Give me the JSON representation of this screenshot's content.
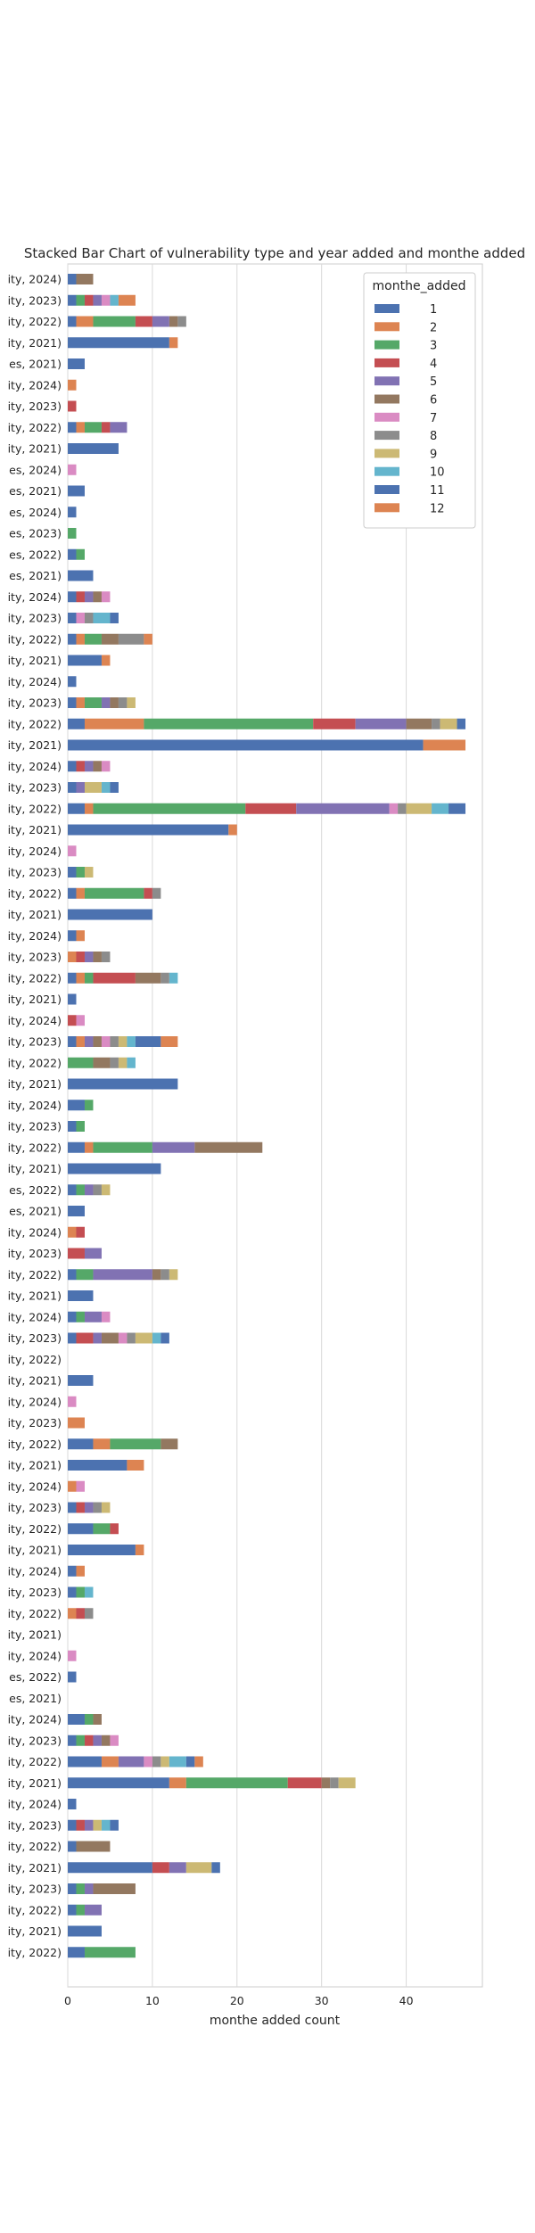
{
  "chart_data": {
    "type": "bar",
    "orientation": "horizontal",
    "stacked": true,
    "title": "Stacked Bar Chart of  vulnerability type and year added and monthe added",
    "xlabel": "monthe added count",
    "ylabel": "",
    "xlim": [
      0,
      49
    ],
    "xticks": [
      0,
      10,
      20,
      30,
      40
    ],
    "grid": true,
    "legend": {
      "title": "monthe_added",
      "placement": "top-right"
    },
    "categories": [
      "ity, 2024)",
      "ity, 2023)",
      "ity, 2022)",
      "ity, 2021)",
      "es, 2021)",
      "ity, 2024)",
      "ity, 2023)",
      "ity, 2022)",
      "ity, 2021)",
      "es, 2024)",
      "es, 2021)",
      "es, 2024)",
      "es, 2023)",
      "es, 2022)",
      "es, 2021)",
      "ity, 2024)",
      "ity, 2023)",
      "ity, 2022)",
      "ity, 2021)",
      "ity, 2024)",
      "ity, 2023)",
      "ity, 2022)",
      "ity, 2021)",
      "ity, 2024)",
      "ity, 2023)",
      "ity, 2022)",
      "ity, 2021)",
      "ity, 2024)",
      "ity, 2023)",
      "ity, 2022)",
      "ity, 2021)",
      "ity, 2024)",
      "ity, 2023)",
      "ity, 2022)",
      "ity, 2021)",
      "ity, 2024)",
      "ity, 2023)",
      "ity, 2022)",
      "ity, 2021)",
      "ity, 2024)",
      "ity, 2023)",
      "ity, 2022)",
      "ity, 2021)",
      "es, 2022)",
      "es, 2021)",
      "ity, 2024)",
      "ity, 2023)",
      "ity, 2022)",
      "ity, 2021)",
      "ity, 2024)",
      "ity, 2023)",
      "ity, 2022)",
      "ity, 2021)",
      "ity, 2024)",
      "ity, 2023)",
      "ity, 2022)",
      "ity, 2021)",
      "ity, 2024)",
      "ity, 2023)",
      "ity, 2022)",
      "ity, 2021)",
      "ity, 2024)",
      "ity, 2023)",
      "ity, 2022)",
      "ity, 2021)",
      "ity, 2024)",
      "es, 2022)",
      "es, 2021)",
      "ity, 2024)",
      "ity, 2023)",
      "ity, 2022)",
      "ity, 2021)",
      "ity, 2024)",
      "ity, 2023)",
      "ity, 2022)",
      "ity, 2021)",
      "ity, 2023)",
      "ity, 2022)",
      "ity, 2021)",
      "ity, 2022)"
    ],
    "series": [
      {
        "name": "1",
        "color": "#4c72b0",
        "values": [
          1,
          1,
          1,
          12,
          2,
          0,
          0,
          1,
          6,
          0,
          2,
          1,
          0,
          1,
          3,
          1,
          1,
          1,
          4,
          1,
          1,
          2,
          42,
          1,
          1,
          2,
          19,
          0,
          1,
          1,
          10,
          1,
          0,
          1,
          1,
          0,
          1,
          0,
          13,
          2,
          1,
          2,
          11,
          1,
          2,
          0,
          0,
          1,
          3,
          1,
          1,
          0,
          3,
          0,
          0,
          3,
          7,
          0,
          1,
          3,
          8,
          1,
          1,
          0,
          0,
          0,
          1,
          0,
          2,
          1,
          4,
          12,
          1,
          1,
          1,
          10,
          1,
          1,
          4,
          2
        ]
      },
      {
        "name": "2",
        "color": "#dd8452",
        "values": [
          0,
          0,
          2,
          1,
          0,
          1,
          0,
          1,
          0,
          0,
          0,
          0,
          0,
          0,
          0,
          0,
          0,
          1,
          1,
          0,
          1,
          7,
          5,
          0,
          0,
          1,
          1,
          0,
          0,
          1,
          0,
          1,
          1,
          1,
          0,
          0,
          1,
          0,
          0,
          0,
          0,
          1,
          0,
          0,
          0,
          1,
          0,
          0,
          0,
          0,
          0,
          0,
          0,
          0,
          2,
          2,
          2,
          1,
          0,
          0,
          1,
          1,
          0,
          1,
          0,
          0,
          0,
          0,
          0,
          0,
          2,
          2,
          0,
          0,
          0,
          0,
          0,
          0,
          0,
          0
        ]
      },
      {
        "name": "3",
        "color": "#55a868",
        "values": [
          0,
          1,
          5,
          0,
          0,
          0,
          0,
          2,
          0,
          0,
          0,
          0,
          1,
          1,
          0,
          0,
          0,
          2,
          0,
          0,
          2,
          20,
          0,
          0,
          0,
          18,
          0,
          0,
          1,
          7,
          0,
          0,
          0,
          1,
          0,
          0,
          0,
          3,
          0,
          1,
          1,
          7,
          0,
          1,
          0,
          0,
          0,
          2,
          0,
          1,
          0,
          0,
          0,
          0,
          0,
          6,
          0,
          0,
          0,
          2,
          0,
          0,
          1,
          0,
          0,
          0,
          0,
          0,
          1,
          1,
          0,
          12,
          0,
          0,
          0,
          0,
          1,
          1,
          0,
          6
        ]
      },
      {
        "name": "4",
        "color": "#c44e52",
        "values": [
          0,
          1,
          2,
          0,
          0,
          0,
          1,
          1,
          0,
          0,
          0,
          0,
          0,
          0,
          0,
          1,
          0,
          0,
          0,
          0,
          0,
          5,
          0,
          1,
          0,
          6,
          0,
          0,
          0,
          1,
          0,
          0,
          1,
          5,
          0,
          1,
          0,
          0,
          0,
          0,
          0,
          0,
          0,
          0,
          0,
          1,
          2,
          0,
          0,
          0,
          2,
          0,
          0,
          0,
          0,
          0,
          0,
          0,
          1,
          1,
          0,
          0,
          0,
          1,
          0,
          0,
          0,
          0,
          0,
          1,
          0,
          4,
          0,
          1,
          0,
          2,
          0,
          0,
          0,
          0
        ]
      },
      {
        "name": "5",
        "color": "#8172b3",
        "values": [
          0,
          1,
          2,
          0,
          0,
          0,
          0,
          2,
          0,
          0,
          0,
          0,
          0,
          0,
          0,
          1,
          0,
          0,
          0,
          0,
          1,
          6,
          0,
          1,
          1,
          11,
          0,
          0,
          0,
          0,
          0,
          0,
          1,
          0,
          0,
          0,
          1,
          0,
          0,
          0,
          0,
          5,
          0,
          1,
          0,
          0,
          2,
          7,
          0,
          2,
          1,
          0,
          0,
          0,
          0,
          0,
          0,
          0,
          1,
          0,
          0,
          0,
          0,
          0,
          0,
          0,
          0,
          0,
          0,
          1,
          3,
          0,
          0,
          1,
          0,
          2,
          1,
          2,
          0,
          0
        ]
      },
      {
        "name": "6",
        "color": "#937860",
        "values": [
          2,
          0,
          1,
          0,
          0,
          0,
          0,
          0,
          0,
          0,
          0,
          0,
          0,
          0,
          0,
          1,
          0,
          2,
          0,
          0,
          1,
          3,
          0,
          1,
          0,
          0,
          0,
          0,
          0,
          0,
          0,
          0,
          1,
          3,
          0,
          0,
          1,
          2,
          0,
          0,
          0,
          8,
          0,
          0,
          0,
          0,
          0,
          1,
          0,
          0,
          2,
          0,
          0,
          0,
          0,
          2,
          0,
          0,
          0,
          0,
          0,
          0,
          0,
          0,
          0,
          0,
          0,
          0,
          1,
          1,
          0,
          1,
          0,
          0,
          4,
          0,
          5,
          0,
          0,
          0
        ]
      },
      {
        "name": "7",
        "color": "#da8bc3",
        "values": [
          0,
          1,
          0,
          0,
          0,
          0,
          0,
          0,
          0,
          1,
          0,
          0,
          0,
          0,
          0,
          1,
          1,
          0,
          0,
          0,
          0,
          0,
          0,
          1,
          0,
          1,
          0,
          1,
          0,
          0,
          0,
          0,
          0,
          0,
          0,
          1,
          1,
          0,
          0,
          0,
          0,
          0,
          0,
          0,
          0,
          0,
          0,
          0,
          0,
          1,
          1,
          0,
          0,
          1,
          0,
          0,
          0,
          1,
          0,
          0,
          0,
          0,
          0,
          0,
          0,
          1,
          0,
          0,
          0,
          1,
          1,
          0,
          0,
          0,
          0,
          0,
          0,
          0,
          0,
          0
        ]
      },
      {
        "name": "8",
        "color": "#8c8c8c",
        "values": [
          0,
          0,
          1,
          0,
          0,
          0,
          0,
          0,
          0,
          0,
          0,
          0,
          0,
          0,
          0,
          0,
          1,
          3,
          0,
          0,
          1,
          1,
          0,
          0,
          0,
          1,
          0,
          0,
          0,
          1,
          0,
          0,
          1,
          1,
          0,
          0,
          1,
          1,
          0,
          0,
          0,
          0,
          0,
          1,
          0,
          0,
          0,
          1,
          0,
          0,
          1,
          0,
          0,
          0,
          0,
          0,
          0,
          0,
          1,
          0,
          0,
          0,
          0,
          1,
          0,
          0,
          0,
          0,
          0,
          0,
          1,
          1,
          0,
          0,
          0,
          0,
          0,
          0,
          0,
          0
        ]
      },
      {
        "name": "9",
        "color": "#ccb974",
        "values": [
          0,
          0,
          0,
          0,
          0,
          0,
          0,
          0,
          0,
          0,
          0,
          0,
          0,
          0,
          0,
          0,
          0,
          0,
          0,
          0,
          1,
          2,
          0,
          0,
          2,
          3,
          0,
          0,
          1,
          0,
          0,
          0,
          0,
          0,
          0,
          0,
          1,
          1,
          0,
          0,
          0,
          0,
          0,
          1,
          0,
          0,
          0,
          1,
          0,
          0,
          2,
          0,
          0,
          0,
          0,
          0,
          0,
          0,
          1,
          0,
          0,
          0,
          0,
          0,
          0,
          0,
          0,
          0,
          0,
          0,
          1,
          2,
          0,
          1,
          0,
          3,
          0,
          0,
          0,
          0
        ]
      },
      {
        "name": "10",
        "color": "#64b5cd",
        "values": [
          0,
          1,
          0,
          0,
          0,
          0,
          0,
          0,
          0,
          0,
          0,
          0,
          0,
          0,
          0,
          0,
          2,
          0,
          0,
          0,
          0,
          0,
          0,
          0,
          1,
          2,
          0,
          0,
          0,
          0,
          0,
          0,
          0,
          1,
          0,
          0,
          1,
          1,
          0,
          0,
          0,
          0,
          0,
          0,
          0,
          0,
          0,
          0,
          0,
          0,
          1,
          0,
          0,
          0,
          0,
          0,
          0,
          0,
          0,
          0,
          0,
          0,
          1,
          0,
          0,
          0,
          0,
          0,
          0,
          0,
          2,
          0,
          0,
          1,
          0,
          0,
          0,
          0,
          0,
          0
        ]
      },
      {
        "name": "11",
        "color": "#4c72b0",
        "values": [
          0,
          0,
          0,
          0,
          0,
          0,
          0,
          0,
          0,
          0,
          0,
          0,
          0,
          0,
          0,
          0,
          1,
          0,
          0,
          0,
          0,
          1,
          0,
          0,
          1,
          2,
          0,
          0,
          0,
          0,
          0,
          0,
          0,
          0,
          0,
          0,
          3,
          0,
          0,
          0,
          0,
          0,
          0,
          0,
          0,
          0,
          0,
          0,
          0,
          0,
          1,
          0,
          0,
          0,
          0,
          0,
          0,
          0,
          0,
          0,
          0,
          0,
          0,
          0,
          0,
          0,
          0,
          0,
          0,
          0,
          1,
          0,
          0,
          1,
          0,
          1,
          0,
          0,
          0,
          0
        ]
      },
      {
        "name": "12",
        "color": "#dd8452",
        "values": [
          0,
          2,
          0,
          0,
          0,
          0,
          0,
          0,
          0,
          0,
          0,
          0,
          0,
          0,
          0,
          0,
          0,
          1,
          0,
          0,
          0,
          0,
          0,
          0,
          0,
          0,
          0,
          0,
          0,
          0,
          0,
          0,
          0,
          0,
          0,
          0,
          2,
          0,
          0,
          0,
          0,
          0,
          0,
          0,
          0,
          0,
          0,
          0,
          0,
          0,
          0,
          0,
          0,
          0,
          0,
          0,
          0,
          0,
          0,
          0,
          0,
          0,
          0,
          0,
          0,
          0,
          0,
          0,
          0,
          0,
          1,
          0,
          0,
          0,
          0,
          0,
          0,
          0,
          0,
          0
        ]
      }
    ]
  }
}
